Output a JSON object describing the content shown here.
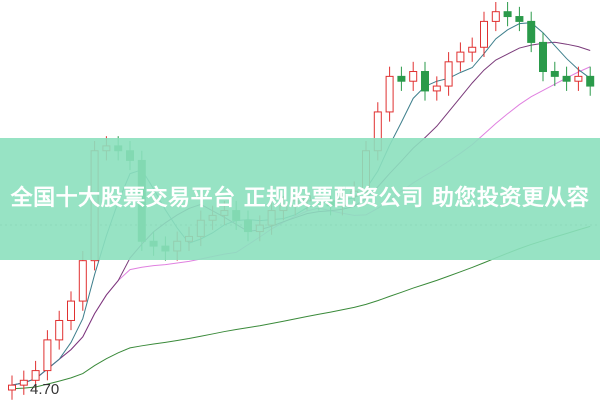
{
  "banner": {
    "title": "全国十大股票交易平台 正规股票配资公司 助您投资更从容"
  },
  "chart_data": {
    "type": "candlestick",
    "price_label": "4.70",
    "ylim": [
      4.7,
      7.1
    ],
    "grid": "dotted horizontal reference line",
    "colors": {
      "up": "#e03030",
      "down": "#2a9a4a",
      "ma5": "#3e7f8c",
      "ma10": "#7a3a7a",
      "ma20": "#e080e0",
      "ma60": "#3a8a3a",
      "banner": "#8ce0be"
    },
    "closes": [
      4.73,
      4.76,
      4.82,
      5.01,
      5.13,
      5.25,
      5.5,
      6.18,
      6.21,
      6.18,
      6.12,
      5.62,
      5.59,
      5.56,
      5.62,
      5.65,
      5.75,
      5.78,
      5.81,
      5.75,
      5.68,
      5.72,
      5.81,
      5.84,
      5.87,
      5.9,
      5.87,
      5.84,
      5.9,
      5.93,
      6.18,
      6.42,
      6.64,
      6.61,
      6.67,
      6.55,
      6.58,
      6.73,
      6.79,
      6.82,
      6.98,
      7.04,
      7.01,
      6.98,
      6.85,
      6.67,
      6.64,
      6.61,
      6.64,
      6.58
    ]
  }
}
